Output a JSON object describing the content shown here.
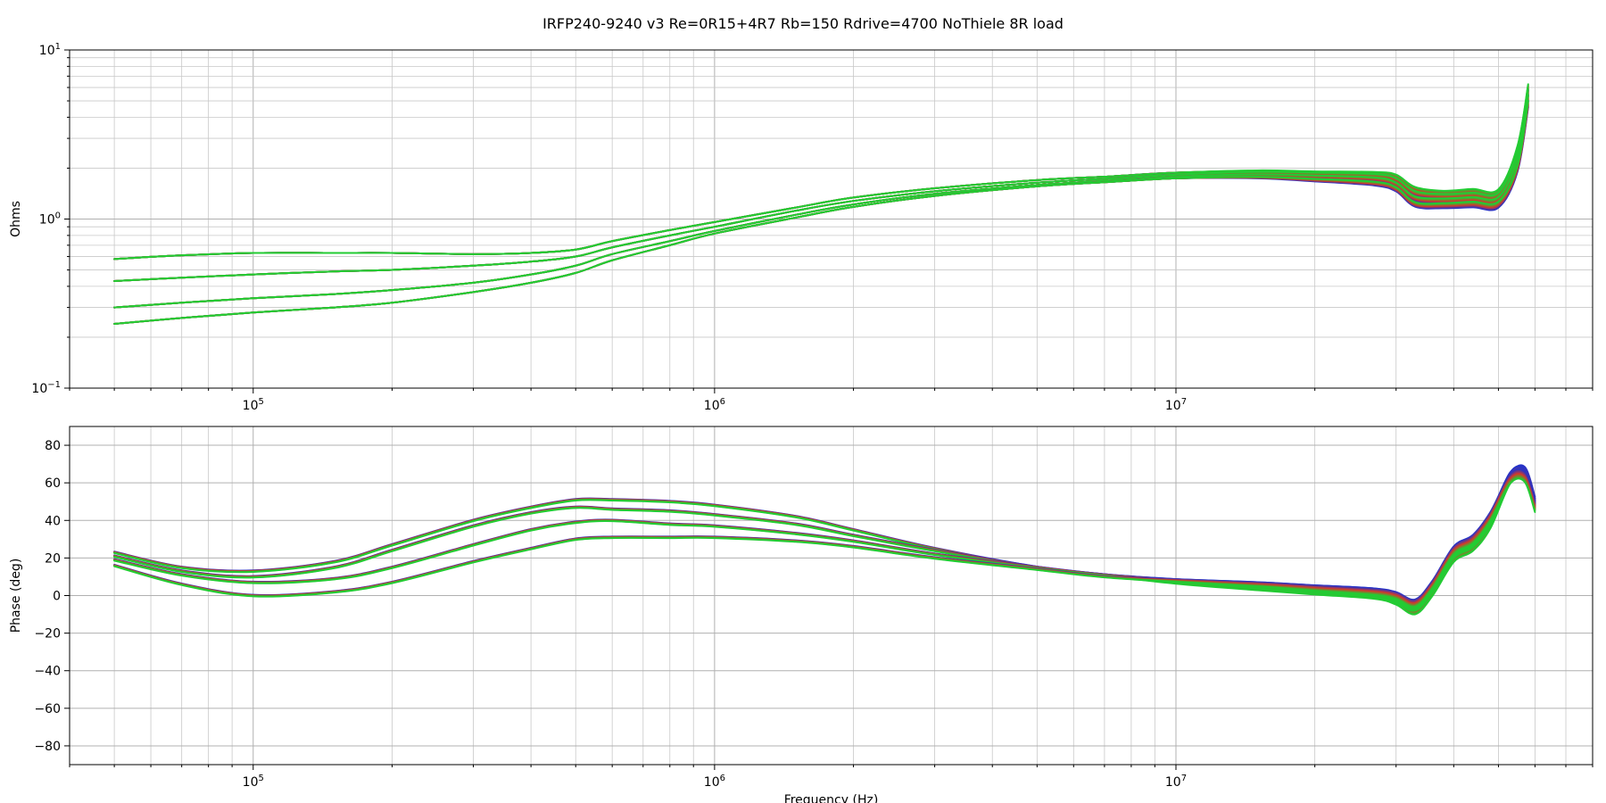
{
  "title": "IRFP240-9240 v3 Re=0R15+4R7 Rb=150 Rdrive=4700 NoThiele 8R load",
  "colors": {
    "start": "#2633c8",
    "mid": "#d23a2a",
    "end": "#22cc33",
    "grid": "#b0b0b0"
  },
  "chart_data": [
    {
      "type": "line",
      "xscale": "log",
      "yscale": "log",
      "xlim": [
        40000,
        80000000
      ],
      "ylim": [
        0.1,
        10
      ],
      "xlabel": "",
      "ylabel": "Ohms",
      "xticks": [
        {
          "base": "10",
          "exp": "5"
        },
        {
          "base": "10",
          "exp": "6"
        },
        {
          "base": "10",
          "exp": "7"
        }
      ],
      "yticks": [
        {
          "base": "10",
          "exp": "1"
        },
        {
          "base": "10",
          "exp": "0"
        },
        {
          "base": "10",
          "exp": "−1"
        }
      ],
      "grid": true,
      "x": [
        50000,
        70000,
        100000,
        150000,
        200000,
        300000,
        400000,
        500000,
        600000,
        800000,
        1000000,
        1500000,
        2000000,
        3000000,
        5000000,
        7000000,
        10000000,
        15000000,
        20000000,
        27000000,
        30000000,
        33000000,
        38000000,
        44000000,
        50000000,
        55000000,
        58000000
      ],
      "series": [
        {
          "values": [
            0.58,
            0.61,
            0.63,
            0.63,
            0.63,
            0.62,
            0.63,
            0.66,
            0.74,
            0.86,
            0.96,
            1.17,
            1.34,
            1.52,
            1.7,
            1.78,
            1.88,
            1.92,
            1.88,
            1.85,
            1.78,
            1.5,
            1.42,
            1.45,
            1.44,
            2.6,
            6.0
          ]
        },
        {
          "values": [
            0.43,
            0.45,
            0.47,
            0.49,
            0.5,
            0.53,
            0.56,
            0.6,
            0.68,
            0.8,
            0.9,
            1.12,
            1.28,
            1.46,
            1.64,
            1.73,
            1.83,
            1.88,
            1.85,
            1.8,
            1.7,
            1.42,
            1.36,
            1.38,
            1.38,
            2.4,
            5.6
          ]
        },
        {
          "values": [
            0.3,
            0.32,
            0.34,
            0.36,
            0.38,
            0.42,
            0.47,
            0.53,
            0.62,
            0.74,
            0.85,
            1.06,
            1.22,
            1.41,
            1.59,
            1.68,
            1.78,
            1.82,
            1.78,
            1.72,
            1.6,
            1.32,
            1.28,
            1.3,
            1.3,
            2.2,
            5.2
          ]
        },
        {
          "values": [
            0.24,
            0.26,
            0.28,
            0.3,
            0.32,
            0.37,
            0.42,
            0.48,
            0.57,
            0.7,
            0.82,
            1.02,
            1.18,
            1.37,
            1.56,
            1.65,
            1.74,
            1.76,
            1.7,
            1.62,
            1.5,
            1.22,
            1.2,
            1.22,
            1.22,
            2.0,
            4.8
          ]
        }
      ]
    },
    {
      "type": "line",
      "xscale": "log",
      "xlim": [
        40000,
        80000000
      ],
      "ylim": [
        -90,
        90
      ],
      "xlabel": "Frequency (Hz)",
      "ylabel": "Phase (deg)",
      "xticks": [
        {
          "base": "10",
          "exp": "5"
        },
        {
          "base": "10",
          "exp": "6"
        },
        {
          "base": "10",
          "exp": "7"
        }
      ],
      "yticks": [
        "80",
        "60",
        "40",
        "20",
        "0",
        "−20",
        "−40",
        "−60",
        "−80"
      ],
      "grid": true,
      "x": [
        50000,
        70000,
        100000,
        150000,
        200000,
        300000,
        400000,
        500000,
        600000,
        800000,
        1000000,
        1500000,
        2000000,
        3000000,
        5000000,
        7000000,
        10000000,
        15000000,
        20000000,
        27000000,
        30000000,
        33000000,
        36000000,
        40000000,
        44000000,
        48000000,
        53000000,
        57000000,
        60000000
      ],
      "series": [
        {
          "values": [
            23,
            15,
            13,
            18,
            27,
            40,
            47,
            51,
            51,
            50,
            48,
            42,
            35,
            25,
            15,
            11,
            7,
            4,
            2,
            0,
            -3,
            -8,
            2,
            20,
            26,
            38,
            62,
            66,
            50
          ]
        },
        {
          "values": [
            21,
            13,
            10,
            15,
            24,
            37,
            44,
            47,
            46,
            45,
            43,
            38,
            32,
            24,
            15,
            11,
            8,
            5,
            3,
            1,
            -2,
            -6,
            4,
            22,
            28,
            40,
            63,
            65,
            49
          ]
        },
        {
          "values": [
            19,
            11,
            7,
            9,
            15,
            27,
            35,
            39,
            40,
            38,
            37,
            33,
            29,
            22,
            15,
            11,
            8,
            6,
            4,
            2,
            -1,
            -5,
            5,
            23,
            29,
            41,
            63,
            64,
            48
          ]
        },
        {
          "values": [
            16,
            6,
            0,
            2,
            7,
            18,
            25,
            30,
            31,
            31,
            31,
            29,
            26,
            20,
            14,
            10,
            8,
            6,
            4,
            2,
            0,
            -4,
            6,
            24,
            30,
            42,
            62,
            63,
            47
          ]
        }
      ]
    }
  ]
}
